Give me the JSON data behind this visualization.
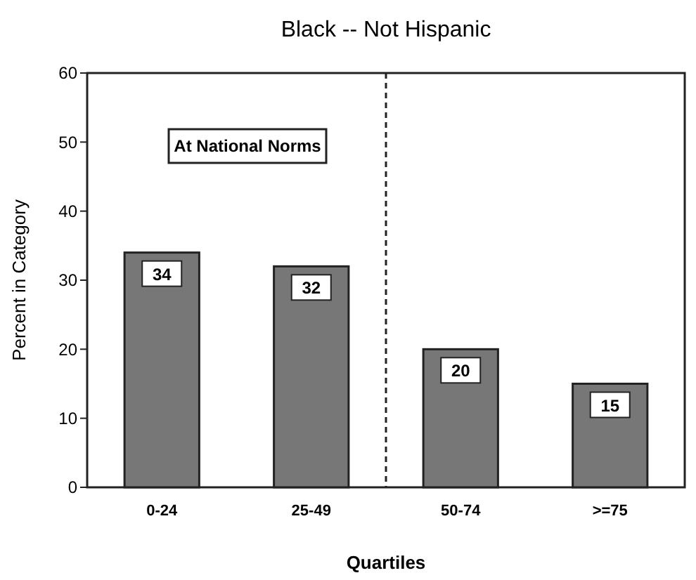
{
  "chart_data": {
    "type": "bar",
    "title": "Black -- Not Hispanic",
    "xlabel": "Quartiles",
    "ylabel": "Percent in Category",
    "categories": [
      "0-24",
      "25-49",
      "50-74",
      ">=75"
    ],
    "values": [
      34,
      32,
      20,
      15
    ],
    "color": "#777777",
    "data_labels": true,
    "ylim": [
      0,
      60
    ],
    "yticks": [
      0,
      10,
      20,
      30,
      40,
      50,
      60
    ],
    "grid": false,
    "annotations": [
      "At National Norms"
    ]
  }
}
